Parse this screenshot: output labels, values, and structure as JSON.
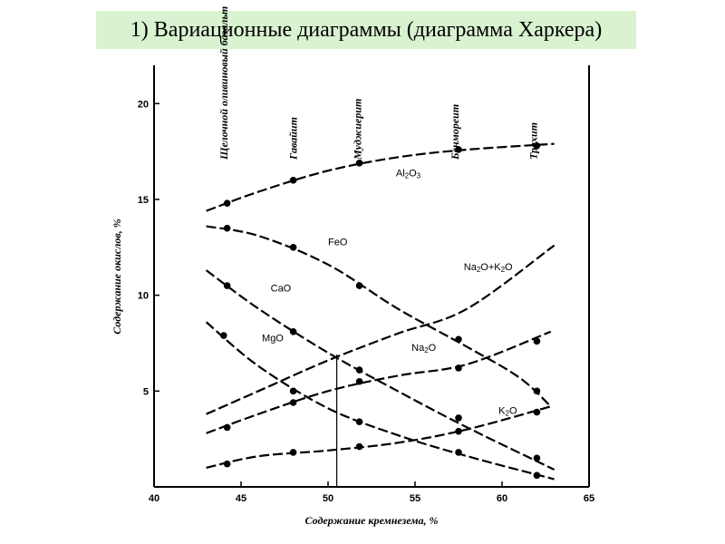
{
  "title": "1) Вариационные диаграммы (диаграмма Харкера)",
  "chart_data": {
    "type": "line",
    "xlabel": "Содержание кремнезема, %",
    "ylabel": "Содержание окислов, %",
    "xlim": [
      40,
      65
    ],
    "ylim": [
      0,
      22
    ],
    "xticks": [
      40,
      45,
      50,
      55,
      60,
      65
    ],
    "yticks": [
      5,
      10,
      15,
      20
    ],
    "rock_types": [
      {
        "label": "Щелочной оливиновый базальт",
        "x": 44
      },
      {
        "label": "Гавайит",
        "x": 48
      },
      {
        "label": "Муджиерит",
        "x": 51.7
      },
      {
        "label": "Бенмореит",
        "x": 57.3
      },
      {
        "label": "Трахит",
        "x": 61.8
      }
    ],
    "vertical_line_x": 50.5,
    "series": [
      {
        "name": "Al2O3",
        "points": [
          [
            44.2,
            14.8
          ],
          [
            48,
            16.0
          ],
          [
            51.8,
            16.9
          ],
          [
            57.5,
            17.6
          ],
          [
            62,
            17.8
          ]
        ],
        "curve": [
          [
            43,
            14.4
          ],
          [
            46,
            15.4
          ],
          [
            50,
            16.5
          ],
          [
            54,
            17.2
          ],
          [
            58,
            17.6
          ],
          [
            63,
            17.9
          ]
        ]
      },
      {
        "name": "FeO",
        "points": [
          [
            44.2,
            13.5
          ],
          [
            48,
            12.5
          ],
          [
            51.8,
            10.5
          ],
          [
            57.5,
            7.7
          ],
          [
            62,
            5.0
          ]
        ],
        "curve": [
          [
            43,
            13.6
          ],
          [
            46,
            13.1
          ],
          [
            50,
            11.6
          ],
          [
            54,
            9.3
          ],
          [
            58,
            7.3
          ],
          [
            61,
            5.7
          ],
          [
            62.8,
            4.2
          ]
        ]
      },
      {
        "name": "CaO",
        "points": [
          [
            44.2,
            10.5
          ],
          [
            48,
            8.1
          ],
          [
            51.8,
            6.1
          ],
          [
            57.5,
            3.6
          ],
          [
            62,
            1.5
          ]
        ],
        "curve": [
          [
            43,
            11.3
          ],
          [
            46,
            9.3
          ],
          [
            50,
            7.0
          ],
          [
            54,
            5.0
          ],
          [
            58,
            3.1
          ],
          [
            63,
            0.9
          ]
        ]
      },
      {
        "name": "MgO",
        "points": [
          [
            44,
            7.9
          ],
          [
            48,
            5.0
          ],
          [
            51.8,
            3.4
          ],
          [
            57.5,
            1.8
          ],
          [
            62,
            0.6
          ]
        ],
        "curve": [
          [
            43,
            8.6
          ],
          [
            46,
            6.3
          ],
          [
            50,
            4.1
          ],
          [
            54,
            2.7
          ],
          [
            58,
            1.6
          ],
          [
            63,
            0.4
          ]
        ]
      },
      {
        "name": "Na2O",
        "points": [
          [
            44.2,
            3.1
          ],
          [
            48,
            4.4
          ],
          [
            51.8,
            5.5
          ],
          [
            57.5,
            6.2
          ],
          [
            62,
            7.6
          ]
        ],
        "curve": [
          [
            43,
            2.8
          ],
          [
            46,
            3.8
          ],
          [
            50,
            5.0
          ],
          [
            54,
            5.8
          ],
          [
            58,
            6.4
          ],
          [
            62.8,
            8.1
          ]
        ]
      },
      {
        "name": "K2O",
        "points": [
          [
            44.2,
            1.2
          ],
          [
            48,
            1.8
          ],
          [
            51.8,
            2.1
          ],
          [
            57.5,
            2.9
          ],
          [
            62,
            3.9
          ]
        ],
        "curve": [
          [
            43,
            1.0
          ],
          [
            46,
            1.6
          ],
          [
            50,
            1.9
          ],
          [
            54,
            2.3
          ],
          [
            58,
            3.0
          ],
          [
            62.8,
            4.2
          ]
        ]
      },
      {
        "name": "Na2O+K2O",
        "points": [],
        "curve": [
          [
            43,
            3.8
          ],
          [
            46,
            5.0
          ],
          [
            50,
            6.6
          ],
          [
            54,
            8.0
          ],
          [
            58,
            9.3
          ],
          [
            63,
            12.6
          ]
        ]
      }
    ],
    "labels": [
      {
        "series": "Al2O3",
        "text": "Al",
        "sub": "2",
        "text2": "O",
        "sub2": "3",
        "at": [
          53.9,
          16.2
        ]
      },
      {
        "series": "FeO",
        "text": "FeO",
        "at": [
          50,
          12.6
        ]
      },
      {
        "series": "CaO",
        "text": "CaO",
        "at": [
          46.7,
          10.2
        ]
      },
      {
        "series": "MgO",
        "text": "MgO",
        "at": [
          46.2,
          7.6
        ]
      },
      {
        "series": "Na2O",
        "text": "Na",
        "sub": "2",
        "text2": "O",
        "at": [
          54.8,
          7.1
        ]
      },
      {
        "series": "K2O",
        "text": "K",
        "sub": "2",
        "text2": "O",
        "at": [
          59.8,
          3.8
        ]
      },
      {
        "series": "Na2O+K2O",
        "text": "Na",
        "sub": "2",
        "text2": "O+K",
        "sub2": "2",
        "text3": "O",
        "at": [
          57.8,
          11.3
        ]
      }
    ]
  }
}
